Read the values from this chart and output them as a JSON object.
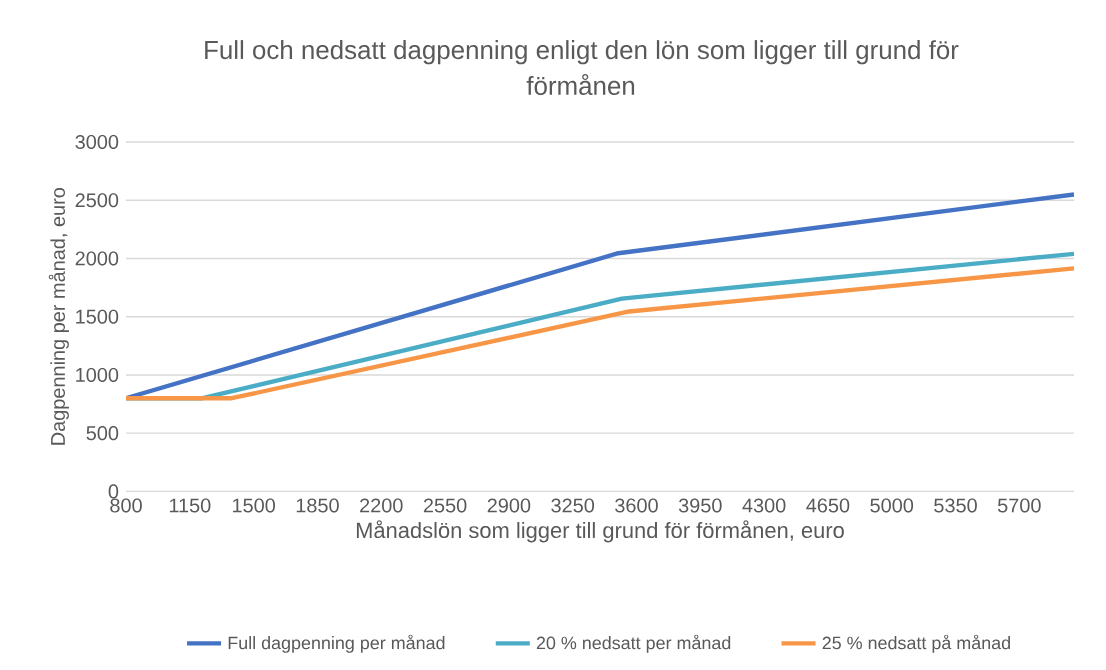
{
  "chart_data": {
    "type": "line",
    "title": "Full och nedsatt dagpenning enligt den lön som ligger till grund för förmånen",
    "xlabel": "Månadslön som ligger till grund för förmånen, euro",
    "ylabel": "Dagpenning per månad, euro",
    "xlim": [
      800,
      6000
    ],
    "xticks": [
      800,
      1150,
      1500,
      1850,
      2200,
      2550,
      2900,
      3250,
      3600,
      3950,
      4300,
      4650,
      5000,
      5350,
      5700
    ],
    "ylim": [
      0,
      3000
    ],
    "yticks": [
      0,
      500,
      1000,
      1500,
      2000,
      2500,
      3000
    ],
    "grid": "y",
    "legend": "bottom",
    "marker": "none",
    "line_style": "solid",
    "series": [
      {
        "name": "Full dagpenning per månad",
        "color": "#4472c4",
        "x": [
          800,
          3500,
          6000
        ],
        "values": [
          800,
          2045,
          2550
        ]
      },
      {
        "name": "20 % nedsatt per månad",
        "color": "#4bacc6",
        "x": [
          800,
          1220,
          3520,
          6000
        ],
        "values": [
          800,
          800,
          1655,
          2040
        ]
      },
      {
        "name": "25 % nedsatt på månad",
        "color": "#f79646",
        "x": [
          800,
          1380,
          3560,
          6000
        ],
        "values": [
          800,
          800,
          1545,
          1915
        ]
      }
    ]
  }
}
